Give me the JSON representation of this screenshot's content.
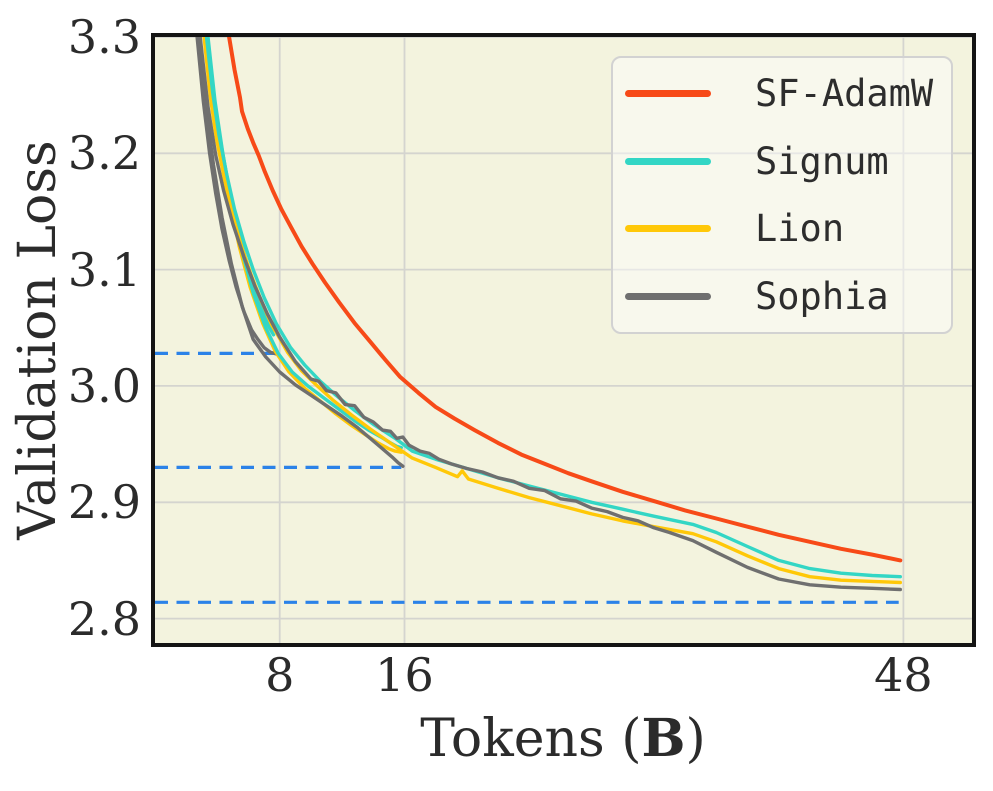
{
  "figure": {
    "x_axis_label": {
      "prefix": "Tokens (",
      "bold": "B",
      "suffix": ")"
    },
    "y_axis_label": "Validation Loss"
  },
  "colors": {
    "plot_background": "#f3f3de",
    "grid": "#d4d4cf",
    "spine": "#141414",
    "baseline_dashed": "#2b82e8",
    "sf_adamw": "#f74a18",
    "signum": "#33d6c5",
    "lion": "#ffc808",
    "sophia": "#6f6f6f"
  },
  "chart_data": {
    "type": "line",
    "title": "",
    "xlabel": "Tokens (B)",
    "ylabel": "Validation Loss",
    "xlim": [
      0,
      52.4
    ],
    "ylim": [
      2.779,
      3.3
    ],
    "grid": true,
    "xticks": [
      {
        "v": 8,
        "label": "8"
      },
      {
        "v": 16,
        "label": "16"
      },
      {
        "v": 48,
        "label": "48"
      }
    ],
    "yticks": [
      {
        "v": 2.8,
        "label": "2.8"
      },
      {
        "v": 2.9,
        "label": "2.9"
      },
      {
        "v": 3.0,
        "label": "3.0"
      },
      {
        "v": 3.1,
        "label": "3.1"
      },
      {
        "v": 3.2,
        "label": "3.2"
      },
      {
        "v": 3.3,
        "label": "3.3"
      }
    ],
    "grid_color": "#d4d4cf",
    "legend": {
      "position": "upper right",
      "entries": [
        {
          "label": "SF-AdamW",
          "color": "#f74a18"
        },
        {
          "label": "Signum",
          "color": "#33d6c5"
        },
        {
          "label": "Lion",
          "color": "#ffc808"
        },
        {
          "label": "Sophia",
          "color": "#6f6f6f"
        }
      ]
    },
    "baselines": [
      {
        "y": 3.028,
        "x_start": 0,
        "x_end": 7.8,
        "color": "#2b82e8",
        "style": "dashed"
      },
      {
        "y": 2.93,
        "x_start": 0,
        "x_end": 15.8,
        "color": "#2b82e8",
        "style": "dashed"
      },
      {
        "y": 2.814,
        "x_start": 0,
        "x_end": 47.7,
        "color": "#2b82e8",
        "style": "dashed"
      }
    ],
    "series": [
      {
        "name": "lion_8b",
        "color": "#ffc808",
        "points": [
          [
            3.2,
            3.3
          ],
          [
            3.6,
            3.25
          ],
          [
            4.0,
            3.214
          ],
          [
            4.45,
            3.18
          ],
          [
            4.9,
            3.152
          ],
          [
            5.4,
            3.125
          ],
          [
            5.9,
            3.102
          ],
          [
            6.4,
            3.082
          ],
          [
            6.9,
            3.064
          ],
          [
            7.25,
            3.054
          ],
          [
            7.6,
            3.048
          ]
        ]
      },
      {
        "name": "signum_8b",
        "color": "#33d6c5",
        "points": [
          [
            3.35,
            3.3
          ],
          [
            3.75,
            3.252
          ],
          [
            4.15,
            3.215
          ],
          [
            4.6,
            3.18
          ],
          [
            5.05,
            3.15
          ],
          [
            5.55,
            3.122
          ],
          [
            6.05,
            3.098
          ],
          [
            6.55,
            3.076
          ],
          [
            7.0,
            3.06
          ],
          [
            7.3,
            3.051
          ],
          [
            7.6,
            3.044
          ]
        ]
      },
      {
        "name": "sophia_8b",
        "color": "#6f6f6f",
        "points": [
          [
            2.7,
            3.3
          ],
          [
            3.1,
            3.245
          ],
          [
            3.5,
            3.2
          ],
          [
            3.9,
            3.165
          ],
          [
            4.3,
            3.135
          ],
          [
            4.75,
            3.108
          ],
          [
            5.2,
            3.085
          ],
          [
            5.7,
            3.064
          ],
          [
            6.2,
            3.048
          ],
          [
            6.6,
            3.04
          ],
          [
            7.0,
            3.033
          ],
          [
            7.4,
            3.029
          ],
          [
            7.9,
            3.027
          ]
        ]
      },
      {
        "name": "lion_16b",
        "color": "#ffc808",
        "points": [
          [
            3.25,
            3.3
          ],
          [
            3.7,
            3.25
          ],
          [
            4.2,
            3.205
          ],
          [
            4.8,
            3.158
          ],
          [
            5.4,
            3.12
          ],
          [
            6.1,
            3.085
          ],
          [
            6.9,
            3.054
          ],
          [
            7.7,
            3.03
          ],
          [
            8.6,
            3.012
          ],
          [
            9.6,
            2.998
          ],
          [
            10.6,
            2.987
          ],
          [
            11.6,
            2.976
          ],
          [
            12.6,
            2.966
          ],
          [
            13.5,
            2.958
          ],
          [
            14.3,
            2.951
          ],
          [
            15.0,
            2.946
          ],
          [
            15.4,
            2.944
          ],
          [
            15.8,
            2.943
          ]
        ]
      },
      {
        "name": "signum_16b",
        "color": "#33d6c5",
        "points": [
          [
            3.4,
            3.3
          ],
          [
            3.85,
            3.245
          ],
          [
            4.35,
            3.2
          ],
          [
            4.95,
            3.155
          ],
          [
            5.6,
            3.115
          ],
          [
            6.3,
            3.08
          ],
          [
            7.1,
            3.05
          ],
          [
            7.9,
            3.028
          ],
          [
            8.8,
            3.012
          ],
          [
            9.8,
            3.0
          ],
          [
            10.8,
            2.99
          ],
          [
            11.8,
            2.98
          ],
          [
            12.8,
            2.97
          ],
          [
            13.7,
            2.962
          ],
          [
            14.5,
            2.956
          ],
          [
            15.1,
            2.951
          ],
          [
            15.5,
            2.948
          ],
          [
            15.8,
            2.947
          ]
        ]
      },
      {
        "name": "sophia_16b",
        "color": "#6f6f6f",
        "points": [
          [
            2.8,
            3.3
          ],
          [
            3.25,
            3.24
          ],
          [
            3.75,
            3.19
          ],
          [
            4.3,
            3.145
          ],
          [
            4.9,
            3.105
          ],
          [
            5.6,
            3.068
          ],
          [
            6.3,
            3.04
          ],
          [
            7.1,
            3.025
          ],
          [
            8.0,
            3.012
          ],
          [
            9.0,
            3.001
          ],
          [
            10,
            2.992
          ],
          [
            11,
            2.983
          ],
          [
            12,
            2.974
          ],
          [
            13,
            2.964
          ],
          [
            13.8,
            2.955
          ],
          [
            14.5,
            2.947
          ],
          [
            15.2,
            2.939
          ],
          [
            15.6,
            2.934
          ],
          [
            15.9,
            2.931
          ]
        ]
      },
      {
        "name": "lion_48b",
        "color": "#ffc808",
        "points": [
          [
            3.15,
            3.3
          ],
          [
            3.55,
            3.248
          ],
          [
            3.95,
            3.212
          ],
          [
            4.45,
            3.178
          ],
          [
            4.95,
            3.148
          ],
          [
            5.55,
            3.12
          ],
          [
            6.15,
            3.096
          ],
          [
            6.85,
            3.072
          ],
          [
            7.65,
            3.049
          ],
          [
            8.5,
            3.029
          ],
          [
            9.4,
            3.013
          ],
          [
            10.4,
            3.0
          ],
          [
            11.4,
            2.988
          ],
          [
            12.6,
            2.975
          ],
          [
            13.8,
            2.963
          ],
          [
            15.2,
            2.95
          ],
          [
            16.5,
            2.938
          ],
          [
            18,
            2.93
          ],
          [
            19.4,
            2.922
          ],
          [
            19.7,
            2.927
          ],
          [
            20.1,
            2.92
          ],
          [
            22,
            2.912
          ],
          [
            24,
            2.904
          ],
          [
            26,
            2.897
          ],
          [
            28,
            2.89
          ],
          [
            30,
            2.884
          ],
          [
            32,
            2.879
          ],
          [
            34.5,
            2.873
          ],
          [
            36,
            2.866
          ],
          [
            38,
            2.854
          ],
          [
            40,
            2.843
          ],
          [
            42,
            2.836
          ],
          [
            44,
            2.833
          ],
          [
            46,
            2.832
          ],
          [
            47.8,
            2.831
          ]
        ]
      },
      {
        "name": "signum_48b",
        "color": "#33d6c5",
        "points": [
          [
            3.3,
            3.3
          ],
          [
            3.7,
            3.252
          ],
          [
            4.1,
            3.216
          ],
          [
            4.6,
            3.182
          ],
          [
            5.1,
            3.152
          ],
          [
            5.7,
            3.124
          ],
          [
            6.3,
            3.1
          ],
          [
            7.0,
            3.076
          ],
          [
            7.8,
            3.053
          ],
          [
            8.7,
            3.033
          ],
          [
            9.6,
            3.018
          ],
          [
            10.6,
            3.004
          ],
          [
            11.6,
            2.992
          ],
          [
            12.8,
            2.979
          ],
          [
            14.0,
            2.967
          ],
          [
            15.4,
            2.955
          ],
          [
            16.5,
            2.944
          ],
          [
            18,
            2.937
          ],
          [
            20,
            2.929
          ],
          [
            22,
            2.921
          ],
          [
            24,
            2.914
          ],
          [
            26,
            2.907
          ],
          [
            28,
            2.9
          ],
          [
            30,
            2.894
          ],
          [
            32,
            2.888
          ],
          [
            34.5,
            2.881
          ],
          [
            36,
            2.874
          ],
          [
            38,
            2.862
          ],
          [
            40,
            2.85
          ],
          [
            42,
            2.843
          ],
          [
            44,
            2.839
          ],
          [
            46,
            2.837
          ],
          [
            47.8,
            2.836
          ]
        ]
      },
      {
        "name": "sophia_48b",
        "color": "#6f6f6f",
        "points": [
          [
            2.9,
            3.3
          ],
          [
            3.4,
            3.24
          ],
          [
            3.9,
            3.198
          ],
          [
            4.4,
            3.168
          ],
          [
            5.0,
            3.139
          ],
          [
            5.7,
            3.111
          ],
          [
            6.4,
            3.086
          ],
          [
            7.2,
            3.062
          ],
          [
            8.0,
            3.042
          ],
          [
            9.0,
            3.021
          ],
          [
            10.0,
            3.006
          ],
          [
            10.5,
            3.004
          ],
          [
            11.0,
            2.996
          ],
          [
            11.6,
            2.994
          ],
          [
            12.2,
            2.984
          ],
          [
            12.8,
            2.983
          ],
          [
            13.4,
            2.973
          ],
          [
            14.0,
            2.969
          ],
          [
            14.6,
            2.962
          ],
          [
            15.1,
            2.961
          ],
          [
            15.5,
            2.955
          ],
          [
            15.9,
            2.956
          ],
          [
            16.3,
            2.949
          ],
          [
            17.0,
            2.944
          ],
          [
            17.6,
            2.942
          ],
          [
            18.2,
            2.937
          ],
          [
            19,
            2.933
          ],
          [
            20,
            2.929
          ],
          [
            21,
            2.926
          ],
          [
            22,
            2.921
          ],
          [
            23,
            2.918
          ],
          [
            24,
            2.912
          ],
          [
            25,
            2.91
          ],
          [
            26,
            2.903
          ],
          [
            27,
            2.901
          ],
          [
            28,
            2.895
          ],
          [
            29,
            2.892
          ],
          [
            30,
            2.887
          ],
          [
            31,
            2.884
          ],
          [
            32,
            2.878
          ],
          [
            33,
            2.874
          ],
          [
            34.5,
            2.867
          ],
          [
            36,
            2.857
          ],
          [
            38,
            2.844
          ],
          [
            40,
            2.834
          ],
          [
            42,
            2.829
          ],
          [
            44,
            2.827
          ],
          [
            46,
            2.826
          ],
          [
            47.8,
            2.825
          ]
        ]
      },
      {
        "name": "sf_adamw_48b",
        "color": "#f74a18",
        "points": [
          [
            4.75,
            3.3
          ],
          [
            5.1,
            3.272
          ],
          [
            5.45,
            3.248
          ],
          [
            5.58,
            3.236
          ],
          [
            5.95,
            3.221
          ],
          [
            6.3,
            3.209
          ],
          [
            6.65,
            3.198
          ],
          [
            7.05,
            3.184
          ],
          [
            7.55,
            3.168
          ],
          [
            8.1,
            3.152
          ],
          [
            8.75,
            3.136
          ],
          [
            9.4,
            3.12
          ],
          [
            10.1,
            3.105
          ],
          [
            10.9,
            3.089
          ],
          [
            11.8,
            3.072
          ],
          [
            12.8,
            3.054
          ],
          [
            13.8,
            3.038
          ],
          [
            14.8,
            3.022
          ],
          [
            15.7,
            3.008
          ],
          [
            16.9,
            2.994
          ],
          [
            18,
            2.982
          ],
          [
            19.2,
            2.972
          ],
          [
            20.5,
            2.962
          ],
          [
            22,
            2.951
          ],
          [
            23.5,
            2.941
          ],
          [
            25,
            2.933
          ],
          [
            26.5,
            2.925
          ],
          [
            28,
            2.918
          ],
          [
            30,
            2.909
          ],
          [
            32,
            2.901
          ],
          [
            34,
            2.893
          ],
          [
            36,
            2.886
          ],
          [
            38,
            2.879
          ],
          [
            40,
            2.872
          ],
          [
            42,
            2.866
          ],
          [
            44,
            2.86
          ],
          [
            46,
            2.855
          ],
          [
            47.8,
            2.85
          ]
        ]
      }
    ]
  }
}
